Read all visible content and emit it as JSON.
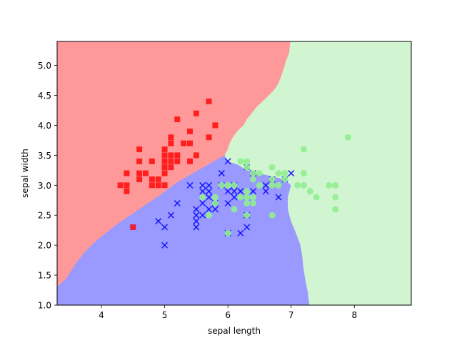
{
  "chart_data": {
    "type": "scatter",
    "title": "",
    "xlabel": "sepal length",
    "ylabel": "sepal width",
    "xlim": [
      3.3,
      8.9
    ],
    "ylim": [
      1.0,
      5.4
    ],
    "xticks": [
      4,
      5,
      6,
      7,
      8
    ],
    "yticks": [
      1.0,
      1.5,
      2.0,
      2.5,
      3.0,
      3.5,
      4.0,
      4.5,
      5.0
    ],
    "grid": false,
    "legend": "none",
    "background": "decision regions",
    "regions": [
      {
        "class": "0",
        "color": "#ff9999",
        "boundary": [
          [
            3.3,
            5.4
          ],
          [
            6.99,
            5.4
          ],
          [
            6.98,
            5.3
          ],
          [
            6.97,
            5.2
          ],
          [
            6.93,
            5.1
          ],
          [
            6.9,
            5.0
          ],
          [
            6.87,
            4.9
          ],
          [
            6.84,
            4.8
          ],
          [
            6.8,
            4.7
          ],
          [
            6.74,
            4.6
          ],
          [
            6.65,
            4.5
          ],
          [
            6.55,
            4.4
          ],
          [
            6.45,
            4.3
          ],
          [
            6.38,
            4.2
          ],
          [
            6.3,
            4.1
          ],
          [
            6.25,
            4.0
          ],
          [
            6.15,
            3.9
          ],
          [
            6.08,
            3.8
          ],
          [
            6.03,
            3.7
          ],
          [
            6.0,
            3.6
          ],
          [
            5.95,
            3.5
          ],
          [
            5.7,
            3.35
          ],
          [
            5.45,
            3.2
          ],
          [
            5.2,
            3.05
          ],
          [
            4.95,
            2.85
          ],
          [
            4.6,
            2.6
          ],
          [
            4.25,
            2.35
          ],
          [
            3.95,
            2.1
          ],
          [
            3.75,
            1.9
          ],
          [
            3.6,
            1.7
          ],
          [
            3.45,
            1.45
          ],
          [
            3.3,
            1.3
          ]
        ]
      },
      {
        "class": "1",
        "color": "#9999ff",
        "boundary": [
          [
            3.3,
            1.3
          ],
          [
            3.45,
            1.45
          ],
          [
            3.6,
            1.7
          ],
          [
            3.75,
            1.9
          ],
          [
            3.95,
            2.1
          ],
          [
            4.25,
            2.35
          ],
          [
            4.6,
            2.6
          ],
          [
            4.95,
            2.85
          ],
          [
            5.2,
            3.05
          ],
          [
            5.45,
            3.2
          ],
          [
            5.7,
            3.35
          ],
          [
            5.95,
            3.5
          ],
          [
            6.0,
            3.4
          ],
          [
            6.15,
            3.35
          ],
          [
            6.3,
            3.25
          ],
          [
            6.5,
            3.2
          ],
          [
            6.7,
            3.15
          ],
          [
            6.9,
            3.1
          ],
          [
            7.0,
            3.0
          ],
          [
            6.95,
            2.8
          ],
          [
            6.95,
            2.6
          ],
          [
            7.0,
            2.4
          ],
          [
            7.08,
            2.2
          ],
          [
            7.15,
            2.0
          ],
          [
            7.18,
            1.8
          ],
          [
            7.2,
            1.6
          ],
          [
            7.23,
            1.4
          ],
          [
            7.27,
            1.2
          ],
          [
            7.29,
            1.0
          ],
          [
            3.3,
            1.0
          ]
        ]
      },
      {
        "class": "2",
        "color": "#d1f5d1",
        "boundary": [
          [
            6.99,
            5.4
          ],
          [
            8.9,
            5.4
          ],
          [
            8.9,
            1.0
          ],
          [
            7.29,
            1.0
          ],
          [
            7.27,
            1.2
          ],
          [
            7.23,
            1.4
          ],
          [
            7.2,
            1.6
          ],
          [
            7.18,
            1.8
          ],
          [
            7.15,
            2.0
          ],
          [
            7.08,
            2.2
          ],
          [
            7.0,
            2.4
          ],
          [
            6.95,
            2.6
          ],
          [
            6.95,
            2.8
          ],
          [
            7.0,
            3.0
          ],
          [
            6.9,
            3.1
          ],
          [
            6.7,
            3.15
          ],
          [
            6.5,
            3.2
          ],
          [
            6.3,
            3.25
          ],
          [
            6.15,
            3.35
          ],
          [
            6.0,
            3.4
          ],
          [
            5.95,
            3.5
          ],
          [
            6.0,
            3.6
          ],
          [
            6.03,
            3.7
          ],
          [
            6.08,
            3.8
          ],
          [
            6.15,
            3.9
          ],
          [
            6.25,
            4.0
          ],
          [
            6.3,
            4.1
          ],
          [
            6.38,
            4.2
          ],
          [
            6.45,
            4.3
          ],
          [
            6.55,
            4.4
          ],
          [
            6.65,
            4.5
          ],
          [
            6.74,
            4.6
          ],
          [
            6.8,
            4.7
          ],
          [
            6.84,
            4.8
          ],
          [
            6.87,
            4.9
          ],
          [
            6.9,
            5.0
          ],
          [
            6.93,
            5.1
          ],
          [
            6.97,
            5.2
          ],
          [
            6.98,
            5.3
          ]
        ]
      }
    ],
    "series": [
      {
        "class": "0",
        "marker": "square",
        "color": "#ff0000",
        "points": [
          [
            4.3,
            3.0
          ],
          [
            4.4,
            2.9
          ],
          [
            4.4,
            3.0
          ],
          [
            4.4,
            3.2
          ],
          [
            4.5,
            2.3
          ],
          [
            4.6,
            3.1
          ],
          [
            4.6,
            3.2
          ],
          [
            4.6,
            3.4
          ],
          [
            4.6,
            3.6
          ],
          [
            4.7,
            3.2
          ],
          [
            4.8,
            3.0
          ],
          [
            4.8,
            3.1
          ],
          [
            4.8,
            3.4
          ],
          [
            4.9,
            3.0
          ],
          [
            4.9,
            3.1
          ],
          [
            5.0,
            3.0
          ],
          [
            5.0,
            3.2
          ],
          [
            5.0,
            3.3
          ],
          [
            5.0,
            3.4
          ],
          [
            5.0,
            3.5
          ],
          [
            5.0,
            3.6
          ],
          [
            5.1,
            3.3
          ],
          [
            5.1,
            3.4
          ],
          [
            5.1,
            3.5
          ],
          [
            5.1,
            3.7
          ],
          [
            5.1,
            3.8
          ],
          [
            5.2,
            3.4
          ],
          [
            5.2,
            3.5
          ],
          [
            5.2,
            4.1
          ],
          [
            5.3,
            3.7
          ],
          [
            5.4,
            3.4
          ],
          [
            5.4,
            3.7
          ],
          [
            5.4,
            3.9
          ],
          [
            5.5,
            3.5
          ],
          [
            5.5,
            4.2
          ],
          [
            5.7,
            3.8
          ],
          [
            5.7,
            4.4
          ],
          [
            5.8,
            4.0
          ]
        ]
      },
      {
        "class": "1",
        "marker": "x",
        "color": "#0000ff",
        "points": [
          [
            4.9,
            2.4
          ],
          [
            5.0,
            2.0
          ],
          [
            5.0,
            2.3
          ],
          [
            5.1,
            2.5
          ],
          [
            5.2,
            2.7
          ],
          [
            5.4,
            3.0
          ],
          [
            5.5,
            2.3
          ],
          [
            5.5,
            2.4
          ],
          [
            5.5,
            2.5
          ],
          [
            5.5,
            2.6
          ],
          [
            5.6,
            2.5
          ],
          [
            5.6,
            2.7
          ],
          [
            5.6,
            2.9
          ],
          [
            5.6,
            3.0
          ],
          [
            5.7,
            2.6
          ],
          [
            5.7,
            2.8
          ],
          [
            5.7,
            2.9
          ],
          [
            5.7,
            3.0
          ],
          [
            5.8,
            2.6
          ],
          [
            5.8,
            2.7
          ],
          [
            5.9,
            3.0
          ],
          [
            5.9,
            3.2
          ],
          [
            6.0,
            2.2
          ],
          [
            6.0,
            2.7
          ],
          [
            6.0,
            2.9
          ],
          [
            6.0,
            3.4
          ],
          [
            6.1,
            2.8
          ],
          [
            6.1,
            2.9
          ],
          [
            6.1,
            3.0
          ],
          [
            6.2,
            2.2
          ],
          [
            6.2,
            2.9
          ],
          [
            6.3,
            2.3
          ],
          [
            6.3,
            2.5
          ],
          [
            6.3,
            3.3
          ],
          [
            6.4,
            2.9
          ],
          [
            6.4,
            3.2
          ],
          [
            6.6,
            2.9
          ],
          [
            6.6,
            3.0
          ],
          [
            6.7,
            3.1
          ],
          [
            6.8,
            2.8
          ],
          [
            6.9,
            3.1
          ],
          [
            7.0,
            3.2
          ]
        ]
      },
      {
        "class": "2",
        "marker": "circle",
        "color": "#90ee90",
        "points": [
          [
            5.6,
            2.8
          ],
          [
            5.7,
            2.5
          ],
          [
            5.8,
            2.7
          ],
          [
            5.8,
            2.8
          ],
          [
            5.9,
            3.0
          ],
          [
            6.0,
            2.2
          ],
          [
            6.0,
            3.0
          ],
          [
            6.1,
            2.6
          ],
          [
            6.1,
            3.0
          ],
          [
            6.2,
            2.8
          ],
          [
            6.2,
            3.4
          ],
          [
            6.3,
            2.5
          ],
          [
            6.3,
            2.7
          ],
          [
            6.3,
            2.8
          ],
          [
            6.3,
            2.9
          ],
          [
            6.3,
            3.3
          ],
          [
            6.3,
            3.4
          ],
          [
            6.4,
            2.7
          ],
          [
            6.4,
            2.8
          ],
          [
            6.4,
            3.1
          ],
          [
            6.4,
            3.2
          ],
          [
            6.5,
            3.0
          ],
          [
            6.5,
            3.2
          ],
          [
            6.7,
            2.5
          ],
          [
            6.7,
            3.0
          ],
          [
            6.7,
            3.1
          ],
          [
            6.7,
            3.3
          ],
          [
            6.8,
            3.0
          ],
          [
            6.8,
            3.2
          ],
          [
            6.9,
            3.1
          ],
          [
            6.9,
            3.2
          ],
          [
            7.1,
            3.0
          ],
          [
            7.2,
            3.0
          ],
          [
            7.2,
            3.2
          ],
          [
            7.2,
            3.6
          ],
          [
            7.3,
            2.9
          ],
          [
            7.4,
            2.8
          ],
          [
            7.6,
            3.0
          ],
          [
            7.7,
            2.6
          ],
          [
            7.7,
            2.8
          ],
          [
            7.7,
            3.0
          ],
          [
            7.9,
            3.8
          ]
        ]
      }
    ]
  }
}
